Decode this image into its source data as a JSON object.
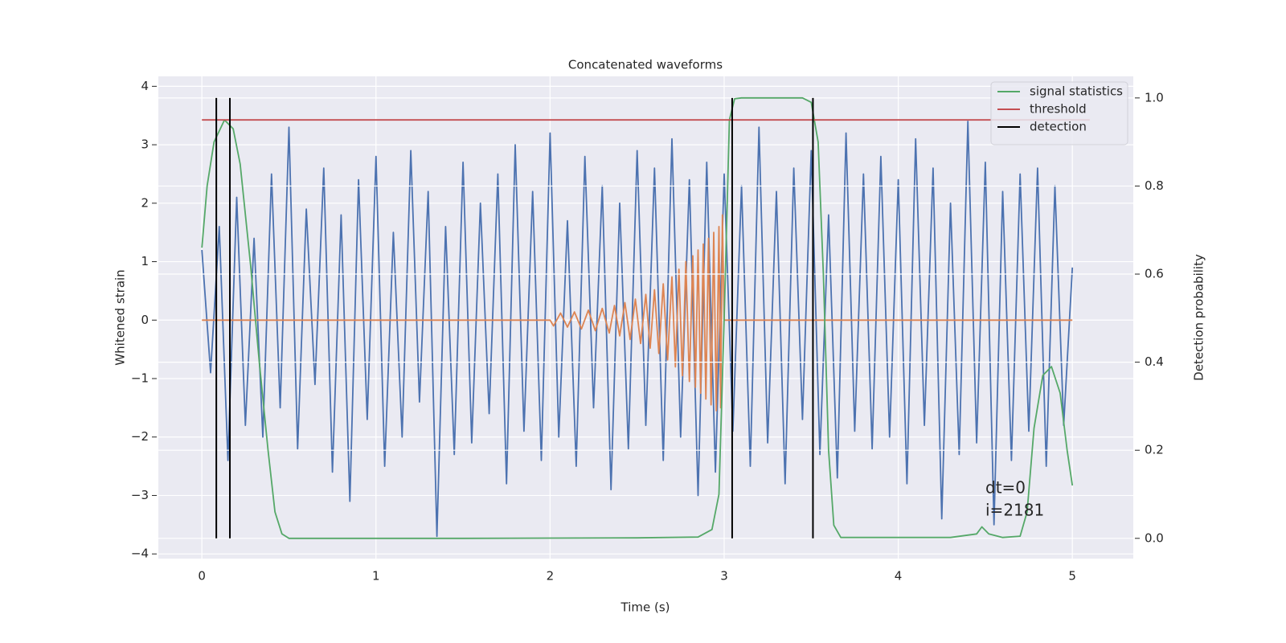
{
  "chart_data": {
    "type": "line",
    "title": "Concatenated waveforms",
    "xlabel": "Time (s)",
    "ylabel": "Whitened strain",
    "y2label": "Detection probability",
    "xlim": [
      -0.25,
      5.35
    ],
    "ylim": [
      -4.08,
      4.17
    ],
    "y2lim": [
      -0.046,
      1.049
    ],
    "xticks": [
      0,
      1,
      2,
      3,
      4,
      5
    ],
    "yticks": [
      {
        "value": -4,
        "label": "−4"
      },
      {
        "value": -3,
        "label": "−3"
      },
      {
        "value": -2,
        "label": "−2"
      },
      {
        "value": -1,
        "label": "−1"
      },
      0,
      1,
      2,
      3,
      4
    ],
    "y2ticks": [
      {
        "value": 0,
        "label": "0.0"
      },
      0.2,
      0.4,
      0.6,
      0.8,
      {
        "value": 1,
        "label": "1.0"
      }
    ],
    "grid": true,
    "legend": "upper right",
    "background": "#eaeaf2",
    "annotations": [
      "dt=0",
      "i=2181"
    ],
    "series": [
      {
        "color": "#4c72b0",
        "x": [
          0,
          0.05,
          0.1,
          0.15,
          0.2,
          0.25,
          0.3,
          0.35,
          0.4,
          0.45,
          0.5,
          0.55,
          0.6,
          0.65,
          0.7,
          0.75,
          0.8,
          0.85,
          0.9,
          0.95,
          1,
          1.05,
          1.1,
          1.15,
          1.2,
          1.25,
          1.3,
          1.35,
          1.4,
          1.45,
          1.5,
          1.55,
          1.6,
          1.65,
          1.7,
          1.75,
          1.8,
          1.85,
          1.9,
          1.95,
          2,
          2.05,
          2.1,
          2.15,
          2.2,
          2.25,
          2.3,
          2.35,
          2.4,
          2.45,
          2.5,
          2.55,
          2.6,
          2.65,
          2.7,
          2.75,
          2.8,
          2.85,
          2.9,
          2.95,
          3,
          3.05,
          3.1,
          3.15,
          3.2,
          3.25,
          3.3,
          3.35,
          3.4,
          3.45,
          3.5,
          3.55,
          3.6,
          3.65,
          3.7,
          3.75,
          3.8,
          3.85,
          3.9,
          3.95,
          4,
          4.05,
          4.1,
          4.15,
          4.2,
          4.25,
          4.3,
          4.35,
          4.4,
          4.45,
          4.5,
          4.55,
          4.6,
          4.65,
          4.7,
          4.75,
          4.8,
          4.85,
          4.9,
          4.95,
          5
        ],
        "values": [
          1.2,
          -0.9,
          1.6,
          -2.4,
          2.1,
          -1.8,
          1.4,
          -2.0,
          2.5,
          -1.5,
          3.3,
          -2.2,
          1.9,
          -1.1,
          2.6,
          -2.6,
          1.8,
          -3.1,
          2.4,
          -1.7,
          2.8,
          -2.5,
          1.5,
          -2.0,
          2.9,
          -1.4,
          2.2,
          -3.7,
          1.6,
          -2.3,
          2.7,
          -2.1,
          2.0,
          -1.6,
          2.5,
          -2.8,
          3.0,
          -1.9,
          2.2,
          -2.4,
          3.2,
          -2.0,
          1.7,
          -2.5,
          2.8,
          -1.5,
          2.3,
          -2.9,
          2.0,
          -2.2,
          2.9,
          -1.8,
          2.6,
          -2.4,
          3.1,
          -2.0,
          2.4,
          -3.0,
          2.7,
          -2.6,
          2.5,
          -1.9,
          2.3,
          -2.5,
          3.3,
          -2.1,
          2.2,
          -2.8,
          2.6,
          -1.7,
          2.9,
          -2.3,
          1.8,
          -2.7,
          3.2,
          -1.9,
          2.5,
          -2.2,
          2.8,
          -2.0,
          2.4,
          -2.8,
          3.1,
          -1.8,
          2.6,
          -3.4,
          2.0,
          -2.3,
          3.4,
          -2.1,
          2.7,
          -3.5,
          2.2,
          -2.4,
          2.5,
          -1.9,
          2.6,
          -2.5,
          2.3,
          -1.8,
          0.9
        ]
      },
      {
        "color": "#dd8452",
        "x": [
          0,
          2,
          2.02,
          2.06,
          2.1,
          2.14,
          2.18,
          2.22,
          2.26,
          2.3,
          2.34,
          2.37,
          2.4,
          2.43,
          2.46,
          2.49,
          2.52,
          2.55,
          2.575,
          2.6,
          2.625,
          2.65,
          2.675,
          2.7,
          2.72,
          2.74,
          2.76,
          2.78,
          2.8,
          2.82,
          2.835,
          2.85,
          2.865,
          2.88,
          2.895,
          2.91,
          2.925,
          2.94,
          2.955,
          2.97,
          2.98,
          2.99,
          3,
          5
        ],
        "values": [
          0,
          0,
          -0.1,
          0.12,
          -0.12,
          0.14,
          -0.15,
          0.17,
          -0.18,
          0.2,
          -0.22,
          0.25,
          -0.27,
          0.3,
          -0.33,
          0.36,
          -0.4,
          0.44,
          -0.48,
          0.52,
          -0.57,
          0.62,
          -0.68,
          0.74,
          -0.8,
          0.87,
          -0.95,
          1.0,
          -1.05,
          1.1,
          -1.15,
          1.2,
          -1.25,
          1.3,
          -1.35,
          1.4,
          -1.45,
          1.5,
          -1.55,
          1.6,
          -1.5,
          1.8,
          0,
          0
        ]
      },
      {
        "name": "signal statistics",
        "color": "#55a868",
        "axis": "y2",
        "x": [
          0,
          0.03,
          0.07,
          0.13,
          0.18,
          0.22,
          0.28,
          0.33,
          0.38,
          0.42,
          0.46,
          0.5,
          1.5,
          2.5,
          2.85,
          2.93,
          2.97,
          3.0,
          3.03,
          3.06,
          3.1,
          3.45,
          3.5,
          3.54,
          3.57,
          3.6,
          3.63,
          3.67,
          4.3,
          4.45,
          4.48,
          4.52,
          4.6,
          4.7,
          4.74,
          4.78,
          4.83,
          4.88,
          4.93,
          4.97,
          5.0
        ],
        "values": [
          0.66,
          0.8,
          0.9,
          0.95,
          0.93,
          0.85,
          0.62,
          0.4,
          0.2,
          0.06,
          0.01,
          0,
          0,
          0.001,
          0.003,
          0.02,
          0.1,
          0.5,
          0.95,
          0.998,
          1.0,
          1.0,
          0.99,
          0.9,
          0.6,
          0.2,
          0.03,
          0.002,
          0.002,
          0.01,
          0.026,
          0.01,
          0.002,
          0.005,
          0.06,
          0.25,
          0.37,
          0.39,
          0.33,
          0.2,
          0.12
        ]
      },
      {
        "name": "threshold",
        "color": "#c44e52",
        "axis": "y2",
        "x": [
          0,
          5.1
        ],
        "values": [
          0.95,
          0.95
        ]
      },
      {
        "name": "detection",
        "color": "#000000",
        "axis": "y2",
        "kind": "vline",
        "x": [
          0.083,
          0.161,
          3.046,
          3.51
        ]
      }
    ]
  }
}
